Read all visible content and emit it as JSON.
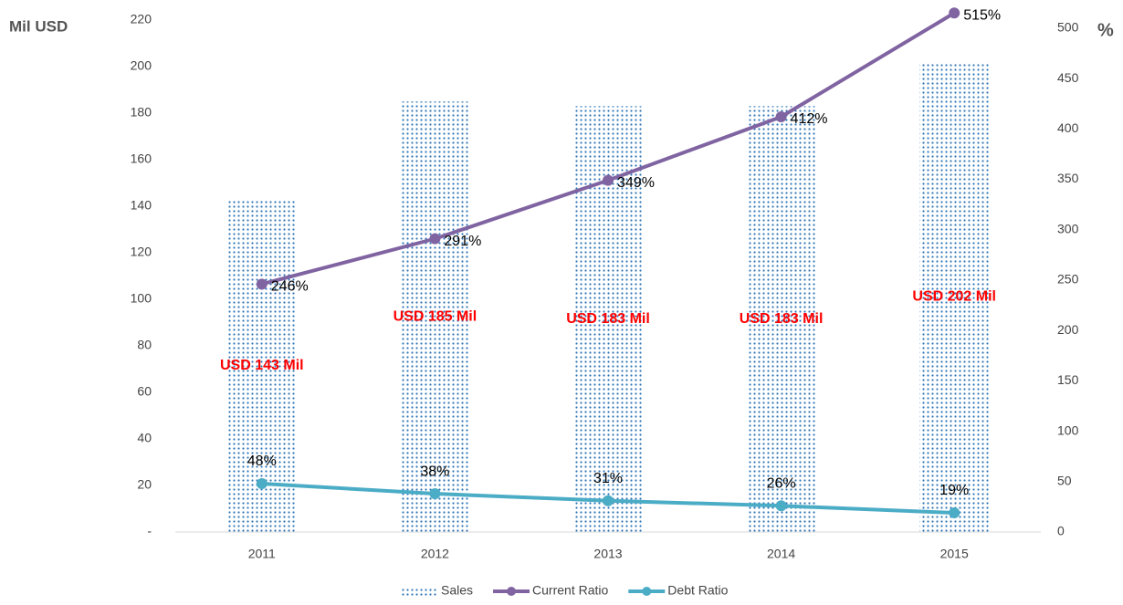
{
  "chart_data": {
    "type": "bar",
    "y_label": "Mil USD",
    "y2_label": "%",
    "categories": [
      "2011",
      "2012",
      "2013",
      "2014",
      "2015"
    ],
    "series": [
      {
        "name": "Sales",
        "type": "bar",
        "color": "#2e75b6",
        "values": [
          143,
          185,
          183,
          183,
          202
        ],
        "value_labels": [
          "USD 143 Mil",
          "USD 185 Mil",
          "USD 183 Mil",
          "USD 183 Mil",
          "USD 202 Mil"
        ]
      },
      {
        "name": "Current Ratio",
        "type": "line",
        "axis": "y2",
        "color": "#8064a2",
        "values": [
          246,
          291,
          349,
          412,
          515
        ],
        "value_labels": [
          "246%",
          "291%",
          "349%",
          "412%",
          "515%"
        ]
      },
      {
        "name": "Debt Ratio",
        "type": "line",
        "axis": "y2",
        "color": "#4bacc6",
        "values": [
          48,
          38,
          31,
          26,
          19
        ],
        "value_labels": [
          "48%",
          "38%",
          "31%",
          "26%",
          "19%"
        ]
      }
    ],
    "ylim": [
      0,
      220
    ],
    "yticks": [
      {
        "value": 0,
        "label": "-"
      },
      20,
      40,
      60,
      80,
      100,
      120,
      140,
      160,
      180,
      200,
      220
    ],
    "y2lim": [
      0,
      508
    ],
    "y2ticks": [
      0,
      50,
      100,
      150,
      200,
      250,
      300,
      350,
      400,
      450,
      500
    ],
    "legend": "bottom",
    "grid": false
  }
}
